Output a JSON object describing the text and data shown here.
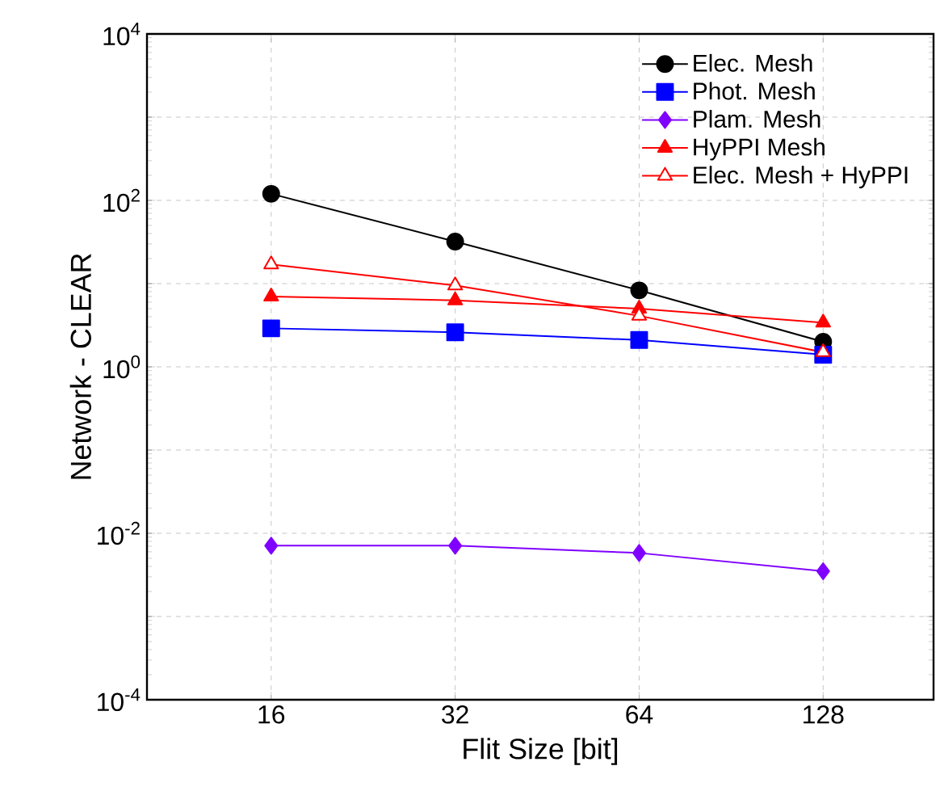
{
  "chart_data": {
    "type": "line",
    "xlabel": "Flit Size [bit]",
    "ylabel": "Network - CLEAR",
    "categories": [
      "16",
      "32",
      "64",
      "128"
    ],
    "series": [
      {
        "name": "Elec. Mesh",
        "color": "#000000",
        "marker": "circle",
        "values": [
          120,
          32,
          8.3,
          2.0
        ]
      },
      {
        "name": "Phot. Mesh",
        "color": "#0000ff",
        "marker": "square",
        "values": [
          2.9,
          2.6,
          2.1,
          1.4
        ]
      },
      {
        "name": "Plam. Mesh",
        "color": "#8000ff",
        "marker": "diamond",
        "values": [
          0.0071,
          0.0071,
          0.0058,
          0.0035
        ]
      },
      {
        "name": "HyPPI Mesh",
        "color": "#ff0000",
        "marker": "triangle",
        "values": [
          7.0,
          6.3,
          5.0,
          3.4
        ]
      },
      {
        "name": "Elec. Mesh + HyPPI",
        "color": "#ff0000",
        "marker": "triangle",
        "values": [
          17,
          9.5,
          4.1,
          1.5
        ]
      }
    ],
    "log": "y",
    "ylim": [
      0.0001,
      10000
    ],
    "yticks": [
      {
        "value": 0.0001,
        "label": "10$^{-4}$"
      },
      {
        "value": 0.001,
        "label": null
      },
      {
        "value": 0.01,
        "label": "10$^{-2}$"
      },
      {
        "value": 0.1,
        "label": null
      },
      {
        "value": 1,
        "label": "10$^{0}$"
      },
      {
        "value": 10,
        "label": null
      },
      {
        "value": 100,
        "label": "10$^{2}$"
      },
      {
        "value": 1000,
        "label": null
      },
      {
        "value": 10000,
        "label": "10$^{4}$"
      }
    ],
    "grid": true,
    "legend": "top right",
    "line_style": "solid"
  }
}
